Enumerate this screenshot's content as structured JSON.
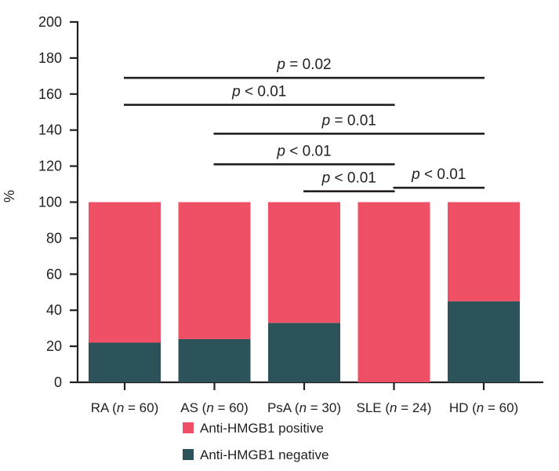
{
  "chart_data": {
    "type": "bar",
    "stacked": true,
    "ylabel": "%",
    "ylim": [
      0,
      200
    ],
    "yticks": [
      0,
      20,
      40,
      60,
      80,
      100,
      120,
      140,
      160,
      180,
      200
    ],
    "grid": false,
    "categories": [
      {
        "name": "RA",
        "n": "60"
      },
      {
        "name": "AS",
        "n": "60"
      },
      {
        "name": "PsA",
        "n": "30"
      },
      {
        "name": "SLE",
        "n": "24"
      },
      {
        "name": "HD",
        "n": "60"
      }
    ],
    "series": [
      {
        "name": "Anti-HMGB1 negative",
        "color": "#2c535a",
        "values": [
          22,
          24,
          33,
          0,
          45
        ]
      },
      {
        "name": "Anti-HMGB1 positive",
        "color": "#f05066",
        "values": [
          78,
          76,
          67,
          100,
          55
        ]
      }
    ],
    "significance": [
      {
        "from": "RA",
        "to": "HD",
        "symbol": "p",
        "op": "=",
        "value": "0.02",
        "y": 169
      },
      {
        "from": "RA",
        "to": "SLE",
        "symbol": "p",
        "op": "<",
        "value": "0.01",
        "y": 154
      },
      {
        "from": "AS",
        "to": "HD",
        "symbol": "p",
        "op": "=",
        "value": "0.01",
        "y": 138
      },
      {
        "from": "AS",
        "to": "SLE",
        "symbol": "p",
        "op": "<",
        "value": "0.01",
        "y": 121
      },
      {
        "from": "PsA",
        "to": "SLE",
        "symbol": "p",
        "op": "<",
        "value": "0.01",
        "y": 106
      },
      {
        "from": "SLE",
        "to": "HD",
        "symbol": "p",
        "op": "<",
        "value": "0.01",
        "y": 108
      }
    ],
    "legend": {
      "placement": "bottom",
      "order": [
        "Anti-HMGB1 positive",
        "Anti-HMGB1 negative"
      ]
    }
  }
}
